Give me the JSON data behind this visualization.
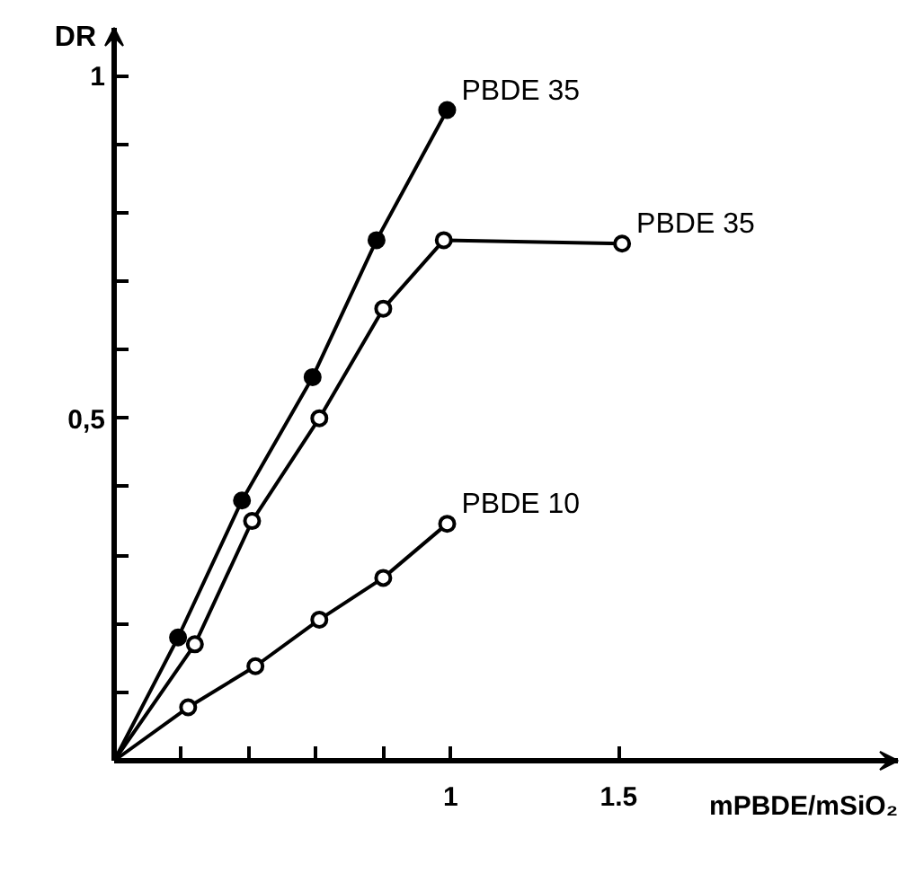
{
  "chart_data": {
    "type": "line",
    "xlabel": "mPBDE/mSiO₂",
    "ylabel": "DR",
    "xlim": [
      0,
      2.33
    ],
    "ylim": [
      0,
      1.07
    ],
    "xticks": [
      {
        "value": 0.2,
        "label": null
      },
      {
        "value": 0.4,
        "label": null
      },
      {
        "value": 0.6,
        "label": null
      },
      {
        "value": 0.8,
        "label": null
      },
      1,
      1.5
    ],
    "yticks": [
      {
        "value": 0.1,
        "label": null
      },
      {
        "value": 0.2,
        "label": null
      },
      {
        "value": 0.3,
        "label": null
      },
      {
        "value": 0.4,
        "label": null
      },
      {
        "value": 0.5,
        "label": "0,5"
      },
      {
        "value": 0.6,
        "label": null
      },
      {
        "value": 0.7,
        "label": null
      },
      {
        "value": 0.8,
        "label": null
      },
      {
        "value": 0.9,
        "label": null
      },
      1
    ],
    "grid": false,
    "line_style": "solid",
    "series": [
      {
        "name": "PBDE 35",
        "color": "#000000",
        "marker": "circle",
        "x": [
          0,
          0.19,
          0.38,
          0.59,
          0.78,
          0.99
        ],
        "values": [
          0,
          0.18,
          0.38,
          0.56,
          0.76,
          0.95
        ]
      },
      {
        "name": "PBDE 35",
        "color": "#000000",
        "marker": "circle_open",
        "x": [
          0,
          0.24,
          0.41,
          0.61,
          0.8,
          0.98,
          1.51
        ],
        "values": [
          0,
          0.17,
          0.35,
          0.5,
          0.66,
          0.76,
          0.755
        ]
      },
      {
        "name": "PBDE 10",
        "color": "#000000",
        "marker": "circle_open",
        "x": [
          0,
          0.22,
          0.42,
          0.61,
          0.8,
          0.99
        ],
        "values": [
          0,
          0.078,
          0.138,
          0.206,
          0.267,
          0.346
        ]
      }
    ]
  }
}
